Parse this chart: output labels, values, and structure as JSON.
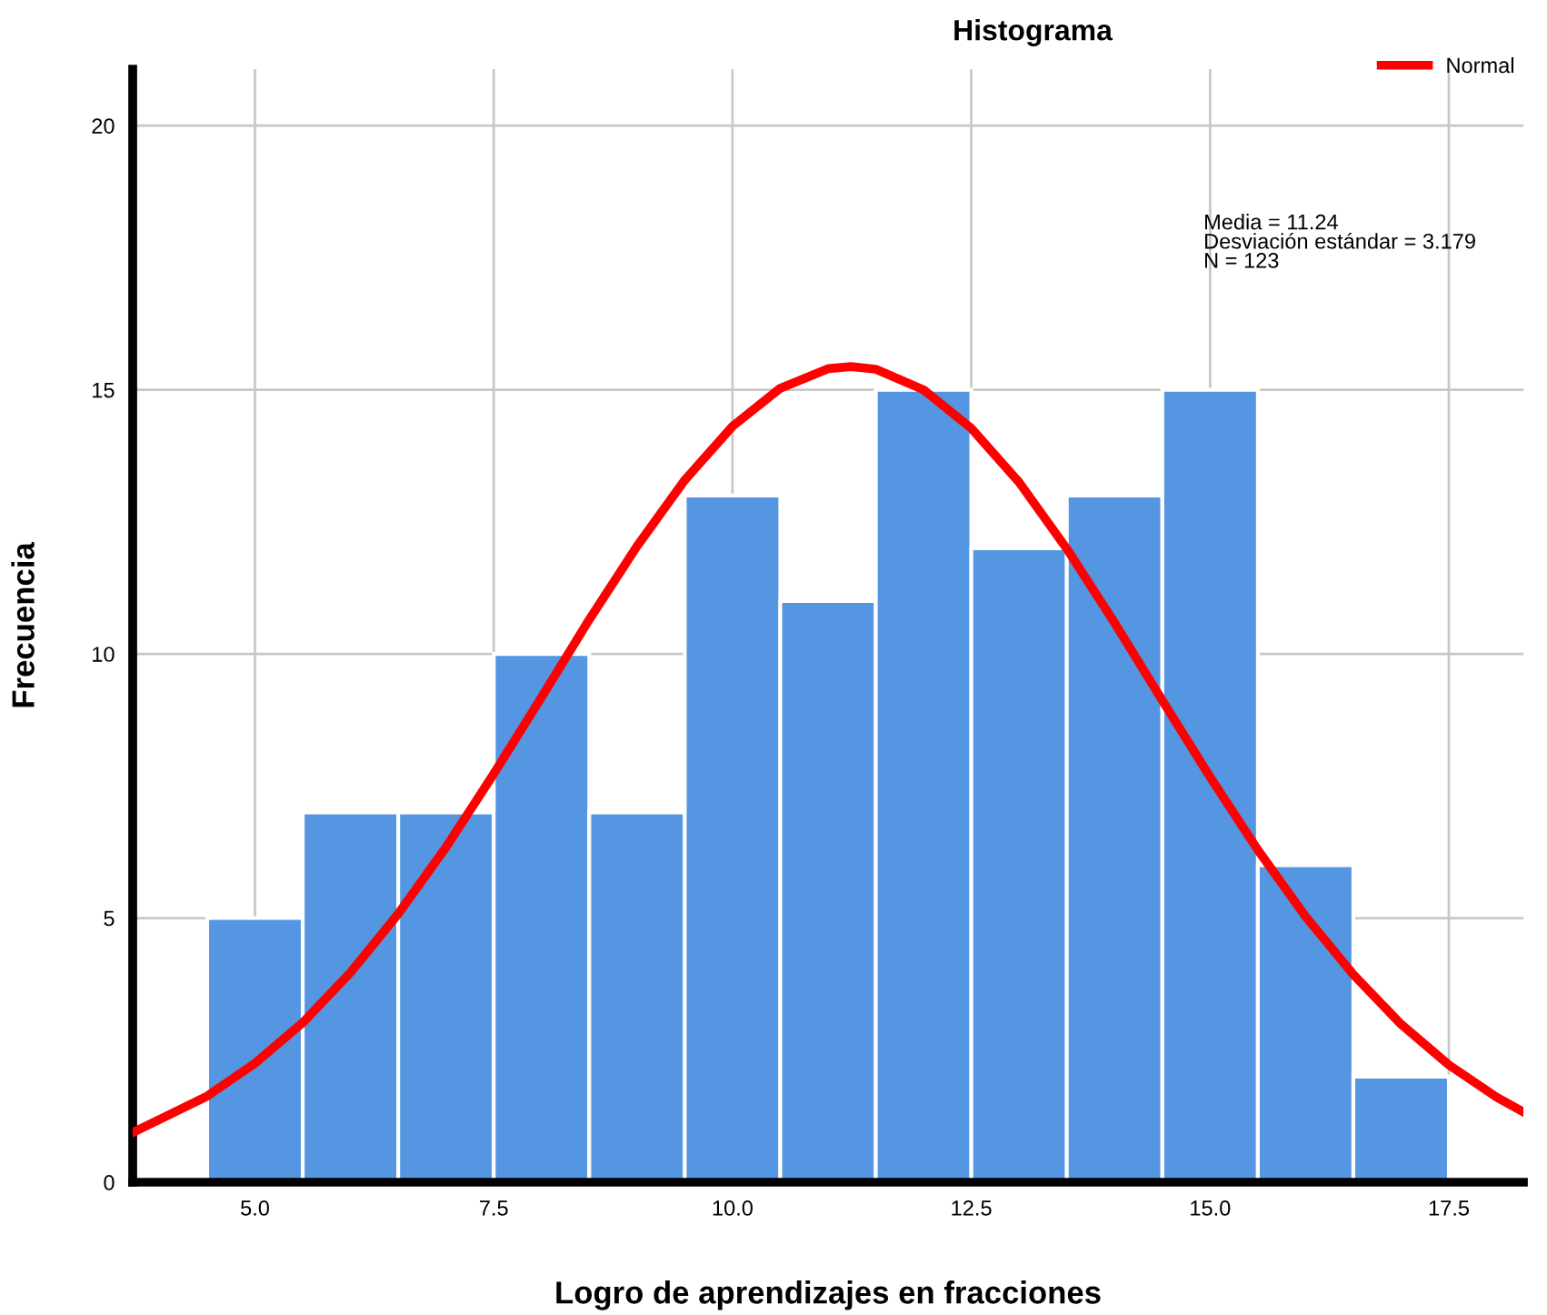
{
  "chart_data": {
    "type": "histogram",
    "title": "Histograma",
    "xlabel": "Logro de aprendizajes en fracciones",
    "ylabel": "Frecuencia",
    "bins": [
      4.5,
      5.5,
      6.5,
      7.5,
      8.5,
      9.5,
      10.5,
      11.5,
      12.5,
      13.5,
      14.5,
      15.5,
      16.5,
      17.5
    ],
    "values": [
      5,
      7,
      7,
      10,
      7,
      13,
      11,
      15,
      12,
      13,
      15,
      6,
      2
    ],
    "color": "#5596e3",
    "series": [
      {
        "name": "Normal",
        "type": "line",
        "color": "#ff0000",
        "x": [
          3.72,
          4.5,
          5,
          5.5,
          6,
          6.5,
          7,
          7.5,
          8,
          8.5,
          9,
          9.5,
          10,
          10.5,
          11,
          11.24,
          11.5,
          12,
          12.5,
          13,
          13.5,
          14,
          14.5,
          15,
          15.5,
          16,
          16.5,
          17,
          17.5,
          18,
          18.28
        ],
        "values": [
          0.94,
          1.63,
          2.25,
          3.02,
          3.97,
          5.08,
          6.34,
          7.73,
          9.18,
          10.65,
          12.04,
          13.29,
          14.31,
          15.03,
          15.4,
          15.44,
          15.39,
          15.0,
          14.27,
          13.25,
          11.99,
          10.59,
          9.12,
          7.67,
          6.29,
          5.03,
          3.93,
          2.99,
          2.22,
          1.61,
          1.33
        ]
      }
    ],
    "annotations": [
      "Media = 11.24\nDesviación estándar = 3.179\nN = 123"
    ],
    "xlim": [
      3.72,
      18.28
    ],
    "xticks": [
      {
        "value": 5,
        "label": "5.0"
      },
      {
        "value": 7.5,
        "label": "7.5"
      },
      {
        "value": 10,
        "label": "10.0"
      },
      {
        "value": 12.5,
        "label": "12.5"
      },
      {
        "value": 15,
        "label": "15.0"
      },
      {
        "value": 17.5,
        "label": "17.5"
      }
    ],
    "ylim": [
      0,
      21.07
    ],
    "yticks": [
      0,
      5,
      10,
      15,
      20
    ],
    "grid": true,
    "legend": "top right"
  }
}
